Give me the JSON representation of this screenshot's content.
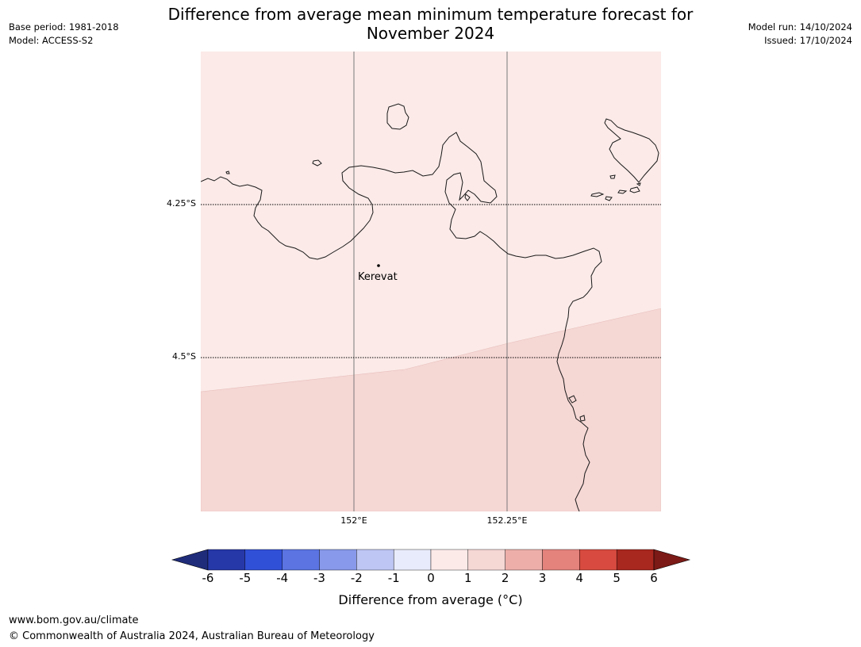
{
  "title_line1": "Difference from average mean minimum temperature forecast for",
  "title_line2": "November 2024",
  "base_period": "Base period: 1981-2018",
  "model": "Model: ACCESS-S2",
  "model_run": "Model run: 14/10/2024",
  "issued": "Issued: 17/10/2024",
  "map": {
    "lat_labels": [
      "4.25°S",
      "4.5°S"
    ],
    "lon_labels": [
      "152°E",
      "152.25°E"
    ],
    "place": {
      "name": "Kerevat"
    },
    "anomaly_classes": [
      {
        "range": "0 to 1",
        "color": "#fbeae8"
      },
      {
        "range": "1 to 2",
        "color": "#f5d7d4"
      }
    ]
  },
  "colorbar": {
    "ticks": [
      "-6",
      "-5",
      "-4",
      "-3",
      "-2",
      "-1",
      "0",
      "1",
      "2",
      "3",
      "4",
      "5",
      "6"
    ],
    "under_color": "#1f2c7a",
    "over_color": "#7b1a16",
    "colors": [
      "#2638a8",
      "#3150d8",
      "#5b74e2",
      "#8898ea",
      "#bec6f4",
      "#e8ebfb",
      "#fbeae8",
      "#f5d7d4",
      "#edaea9",
      "#e4827c",
      "#d84a3f",
      "#a8271f"
    ],
    "label": "Difference from average ($^\\circ$C)",
    "label_display": "Difference from average (°C)"
  },
  "footer": {
    "url": "www.bom.gov.au/climate",
    "copyright": "© Commonwealth of Australia 2024, Australian Bureau of Meteorology"
  }
}
